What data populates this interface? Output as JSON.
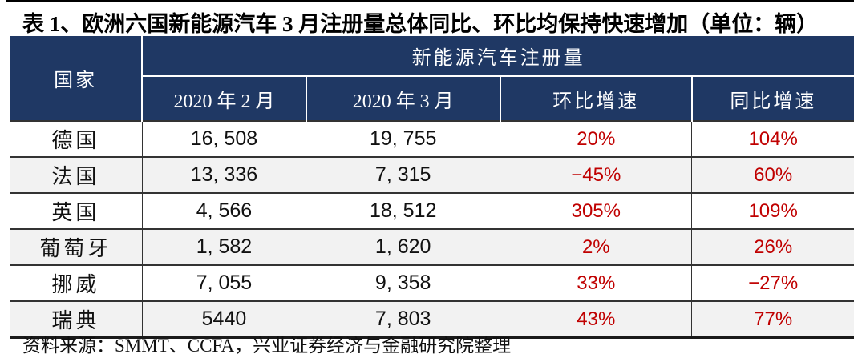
{
  "title": "表 1、欧洲六国新能源汽车 3 月注册量总体同比、环比均保持快速增加（单位：辆）",
  "table": {
    "corner_header": "国家",
    "group_header": "新能源汽车注册量",
    "columns": [
      "2020 年 2 月",
      "2020 年 3 月",
      "环比增速",
      "同比增速"
    ],
    "rows": [
      {
        "country": "德国",
        "feb_2020": "16, 508",
        "mar_2020": "19, 755",
        "mom_growth": "20%",
        "yoy_growth": "104%"
      },
      {
        "country": "法国",
        "feb_2020": "13, 336",
        "mar_2020": "7, 315",
        "mom_growth": "−45%",
        "yoy_growth": "60%"
      },
      {
        "country": "英国",
        "feb_2020": "4, 566",
        "mar_2020": "18, 512",
        "mom_growth": "305%",
        "yoy_growth": "109%"
      },
      {
        "country": "葡萄牙",
        "feb_2020": "1, 582",
        "mar_2020": "1, 620",
        "mom_growth": "2%",
        "yoy_growth": "26%"
      },
      {
        "country": "挪威",
        "feb_2020": "7, 055",
        "mar_2020": "9, 358",
        "mom_growth": "33%",
        "yoy_growth": "−27%"
      },
      {
        "country": "瑞典",
        "feb_2020": "5440",
        "mar_2020": "7, 803",
        "mom_growth": "43%",
        "yoy_growth": "77%"
      }
    ]
  },
  "source": "资料来源：SMMT、CCFA，兴业证券经济与金融研究院整理",
  "colors": {
    "header_bg": "#1f3864",
    "growth_red": "#c00000",
    "row_alt_bg": "#f2f2f2"
  }
}
